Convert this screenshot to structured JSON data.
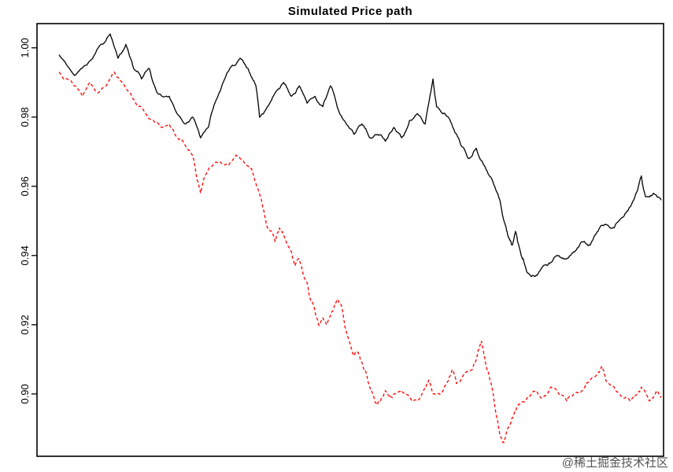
{
  "chart_data": {
    "type": "line",
    "title": "Simulated Price path",
    "xlabel": "",
    "ylabel": "",
    "ylim": [
      0.882,
      1.007
    ],
    "xticks": [],
    "yticks": [
      0.9,
      0.92,
      0.94,
      0.96,
      0.98,
      1.0
    ],
    "ytick_labels": [
      "0.90",
      "0.92",
      "0.94",
      "0.96",
      "0.98",
      "1.00"
    ],
    "grid": false,
    "legend": null,
    "axis_color": "#000000",
    "series": [
      {
        "name": "black-price-path",
        "color": "#000000",
        "style": "solid",
        "points": [
          [
            0.0,
            0.998
          ],
          [
            0.026,
            0.992
          ],
          [
            0.046,
            0.995
          ],
          [
            0.065,
            1.0
          ],
          [
            0.085,
            1.004
          ],
          [
            0.098,
            0.997
          ],
          [
            0.111,
            1.001
          ],
          [
            0.124,
            0.994
          ],
          [
            0.137,
            0.991
          ],
          [
            0.15,
            0.994
          ],
          [
            0.163,
            0.987
          ],
          [
            0.183,
            0.986
          ],
          [
            0.196,
            0.981
          ],
          [
            0.209,
            0.978
          ],
          [
            0.222,
            0.98
          ],
          [
            0.235,
            0.974
          ],
          [
            0.248,
            0.977
          ],
          [
            0.261,
            0.985
          ],
          [
            0.275,
            0.991
          ],
          [
            0.288,
            0.995
          ],
          [
            0.301,
            0.997
          ],
          [
            0.314,
            0.994
          ],
          [
            0.327,
            0.989
          ],
          [
            0.333,
            0.98
          ],
          [
            0.346,
            0.983
          ],
          [
            0.359,
            0.987
          ],
          [
            0.373,
            0.99
          ],
          [
            0.386,
            0.986
          ],
          [
            0.399,
            0.989
          ],
          [
            0.412,
            0.984
          ],
          [
            0.425,
            0.986
          ],
          [
            0.438,
            0.983
          ],
          [
            0.451,
            0.989
          ],
          [
            0.464,
            0.982
          ],
          [
            0.477,
            0.978
          ],
          [
            0.49,
            0.975
          ],
          [
            0.503,
            0.978
          ],
          [
            0.516,
            0.974
          ],
          [
            0.529,
            0.975
          ],
          [
            0.542,
            0.973
          ],
          [
            0.556,
            0.977
          ],
          [
            0.569,
            0.974
          ],
          [
            0.582,
            0.979
          ],
          [
            0.595,
            0.981
          ],
          [
            0.608,
            0.978
          ],
          [
            0.621,
            0.991
          ],
          [
            0.627,
            0.983
          ],
          [
            0.641,
            0.981
          ],
          [
            0.654,
            0.977
          ],
          [
            0.667,
            0.972
          ],
          [
            0.68,
            0.968
          ],
          [
            0.693,
            0.971
          ],
          [
            0.706,
            0.966
          ],
          [
            0.719,
            0.962
          ],
          [
            0.732,
            0.956
          ],
          [
            0.739,
            0.95
          ],
          [
            0.745,
            0.946
          ],
          [
            0.752,
            0.943
          ],
          [
            0.758,
            0.947
          ],
          [
            0.765,
            0.942
          ],
          [
            0.771,
            0.939
          ],
          [
            0.778,
            0.935
          ],
          [
            0.791,
            0.934
          ],
          [
            0.804,
            0.937
          ],
          [
            0.817,
            0.938
          ],
          [
            0.83,
            0.94
          ],
          [
            0.843,
            0.939
          ],
          [
            0.856,
            0.941
          ],
          [
            0.869,
            0.944
          ],
          [
            0.882,
            0.943
          ],
          [
            0.895,
            0.947
          ],
          [
            0.908,
            0.949
          ],
          [
            0.922,
            0.948
          ],
          [
            0.935,
            0.951
          ],
          [
            0.948,
            0.954
          ],
          [
            0.961,
            0.959
          ],
          [
            0.967,
            0.963
          ],
          [
            0.974,
            0.957
          ],
          [
            0.987,
            0.958
          ],
          [
            1.0,
            0.956
          ]
        ]
      },
      {
        "name": "red-price-path",
        "color": "#FF0000",
        "style": "dashed",
        "points": [
          [
            0.0,
            0.993
          ],
          [
            0.013,
            0.991
          ],
          [
            0.026,
            0.989
          ],
          [
            0.039,
            0.986
          ],
          [
            0.052,
            0.99
          ],
          [
            0.065,
            0.987
          ],
          [
            0.078,
            0.989
          ],
          [
            0.092,
            0.993
          ],
          [
            0.105,
            0.99
          ],
          [
            0.118,
            0.987
          ],
          [
            0.131,
            0.983
          ],
          [
            0.144,
            0.981
          ],
          [
            0.157,
            0.979
          ],
          [
            0.17,
            0.977
          ],
          [
            0.183,
            0.978
          ],
          [
            0.196,
            0.974
          ],
          [
            0.209,
            0.972
          ],
          [
            0.222,
            0.969
          ],
          [
            0.229,
            0.962
          ],
          [
            0.235,
            0.958
          ],
          [
            0.242,
            0.963
          ],
          [
            0.255,
            0.966
          ],
          [
            0.268,
            0.967
          ],
          [
            0.281,
            0.966
          ],
          [
            0.294,
            0.969
          ],
          [
            0.307,
            0.967
          ],
          [
            0.32,
            0.965
          ],
          [
            0.333,
            0.958
          ],
          [
            0.34,
            0.953
          ],
          [
            0.346,
            0.948
          ],
          [
            0.353,
            0.947
          ],
          [
            0.359,
            0.944
          ],
          [
            0.366,
            0.948
          ],
          [
            0.373,
            0.946
          ],
          [
            0.386,
            0.941
          ],
          [
            0.392,
            0.937
          ],
          [
            0.399,
            0.939
          ],
          [
            0.405,
            0.935
          ],
          [
            0.412,
            0.932
          ],
          [
            0.418,
            0.927
          ],
          [
            0.425,
            0.924
          ],
          [
            0.431,
            0.92
          ],
          [
            0.438,
            0.922
          ],
          [
            0.444,
            0.92
          ],
          [
            0.451,
            0.923
          ],
          [
            0.458,
            0.926
          ],
          [
            0.464,
            0.927
          ],
          [
            0.471,
            0.924
          ],
          [
            0.477,
            0.918
          ],
          [
            0.484,
            0.914
          ],
          [
            0.49,
            0.911
          ],
          [
            0.497,
            0.912
          ],
          [
            0.503,
            0.909
          ],
          [
            0.51,
            0.906
          ],
          [
            0.516,
            0.902
          ],
          [
            0.523,
            0.899
          ],
          [
            0.529,
            0.897
          ],
          [
            0.536,
            0.899
          ],
          [
            0.542,
            0.901
          ],
          [
            0.549,
            0.899
          ],
          [
            0.556,
            0.9
          ],
          [
            0.569,
            0.901
          ],
          [
            0.582,
            0.899
          ],
          [
            0.595,
            0.898
          ],
          [
            0.608,
            0.902
          ],
          [
            0.614,
            0.904
          ],
          [
            0.621,
            0.9
          ],
          [
            0.634,
            0.9
          ],
          [
            0.647,
            0.904
          ],
          [
            0.654,
            0.907
          ],
          [
            0.66,
            0.903
          ],
          [
            0.673,
            0.906
          ],
          [
            0.686,
            0.907
          ],
          [
            0.693,
            0.91
          ],
          [
            0.699,
            0.914
          ],
          [
            0.702,
            0.915
          ],
          [
            0.706,
            0.911
          ],
          [
            0.712,
            0.907
          ],
          [
            0.719,
            0.902
          ],
          [
            0.725,
            0.895
          ],
          [
            0.732,
            0.888
          ],
          [
            0.739,
            0.886
          ],
          [
            0.745,
            0.89
          ],
          [
            0.752,
            0.893
          ],
          [
            0.758,
            0.895
          ],
          [
            0.765,
            0.897
          ],
          [
            0.778,
            0.899
          ],
          [
            0.791,
            0.901
          ],
          [
            0.804,
            0.899
          ],
          [
            0.817,
            0.902
          ],
          [
            0.83,
            0.9
          ],
          [
            0.843,
            0.898
          ],
          [
            0.856,
            0.9
          ],
          [
            0.869,
            0.901
          ],
          [
            0.882,
            0.904
          ],
          [
            0.895,
            0.906
          ],
          [
            0.902,
            0.908
          ],
          [
            0.908,
            0.904
          ],
          [
            0.922,
            0.902
          ],
          [
            0.935,
            0.899
          ],
          [
            0.948,
            0.898
          ],
          [
            0.961,
            0.9
          ],
          [
            0.967,
            0.902
          ],
          [
            0.98,
            0.898
          ],
          [
            0.993,
            0.901
          ],
          [
            1.0,
            0.899
          ]
        ]
      }
    ],
    "watermark": "@稀土掘金技术社区"
  }
}
